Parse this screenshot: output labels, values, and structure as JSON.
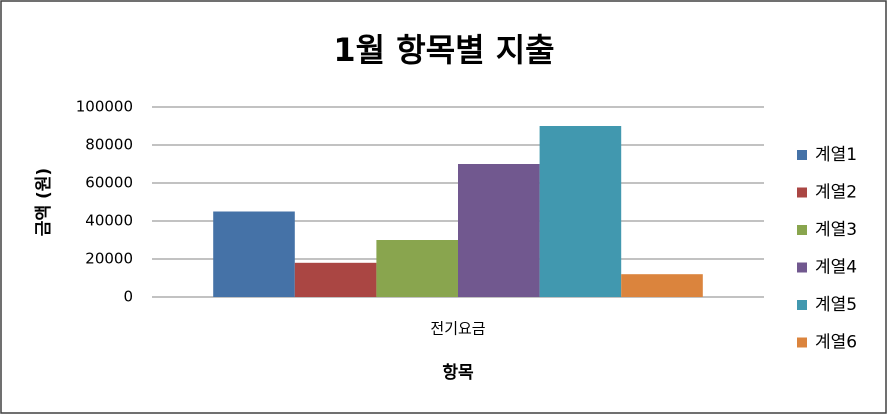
{
  "chart_data": {
    "type": "bar",
    "title": "1월 항목별 지출",
    "x_label": "항목",
    "y_label": "금액 (원)",
    "categories": [
      "전기요금"
    ],
    "series": [
      {
        "name": "계열1",
        "color": "#4572a7",
        "values": [
          45000
        ]
      },
      {
        "name": "계열2",
        "color": "#aa4643",
        "values": [
          18000
        ]
      },
      {
        "name": "계열3",
        "color": "#89a54e",
        "values": [
          30000
        ]
      },
      {
        "name": "계열4",
        "color": "#71588f",
        "values": [
          70000
        ]
      },
      {
        "name": "계열5",
        "color": "#4198af",
        "values": [
          90000
        ]
      },
      {
        "name": "계열6",
        "color": "#db843d",
        "values": [
          12000
        ]
      }
    ],
    "ylim": [
      0,
      100000
    ],
    "yticks": [
      0,
      20000,
      40000,
      60000,
      80000,
      100000
    ],
    "grid": true,
    "legend": "right"
  }
}
